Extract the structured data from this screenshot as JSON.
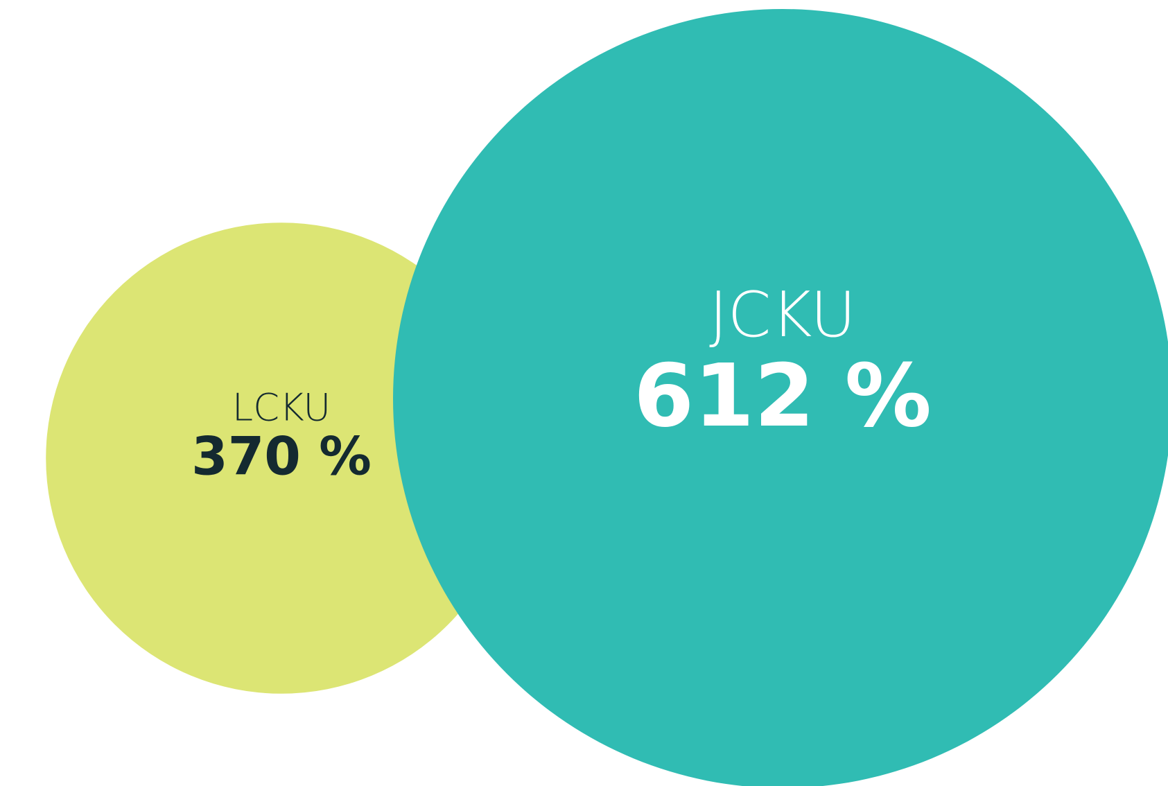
{
  "chart_data": {
    "type": "bubble",
    "categories": [
      "LCKU",
      "JCKU"
    ],
    "values": [
      370,
      612
    ],
    "value_labels": [
      "370 %",
      "612 %"
    ],
    "colors": [
      "#dce574",
      "#30bcb3"
    ]
  }
}
